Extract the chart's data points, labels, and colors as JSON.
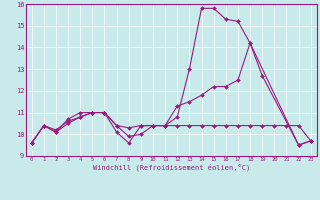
{
  "xlabel": "Windchill (Refroidissement éolien,°C)",
  "background_color": "#c8eaea",
  "line_color": "#9b1a7e",
  "xlim": [
    -0.5,
    23.5
  ],
  "ylim": [
    9,
    16
  ],
  "yticks": [
    9,
    10,
    11,
    12,
    13,
    14,
    15,
    16
  ],
  "xticks": [
    0,
    1,
    2,
    3,
    4,
    5,
    6,
    7,
    8,
    9,
    10,
    11,
    12,
    13,
    14,
    15,
    16,
    17,
    18,
    19,
    20,
    21,
    22,
    23
  ],
  "series": [
    {
      "x": [
        0,
        1,
        2,
        3,
        4,
        5,
        6,
        7,
        8,
        9,
        10,
        11,
        12,
        13,
        14,
        15,
        16,
        17,
        18,
        22,
        23
      ],
      "y": [
        9.6,
        10.4,
        10.1,
        10.7,
        11.0,
        11.0,
        11.0,
        10.1,
        9.6,
        10.4,
        10.4,
        10.4,
        10.8,
        13.0,
        15.8,
        15.8,
        15.3,
        15.2,
        14.2,
        9.5,
        9.7
      ]
    },
    {
      "x": [
        0,
        1,
        2,
        3,
        4,
        5,
        6,
        7,
        8,
        9,
        10,
        11,
        12,
        13,
        14,
        15,
        16,
        17,
        18,
        19,
        22,
        23
      ],
      "y": [
        9.6,
        10.4,
        10.1,
        10.5,
        10.8,
        11.0,
        11.0,
        10.4,
        9.9,
        10.0,
        10.4,
        10.4,
        11.3,
        11.5,
        11.8,
        12.2,
        12.2,
        12.5,
        14.2,
        12.7,
        9.5,
        9.7
      ]
    },
    {
      "x": [
        0,
        1,
        2,
        3,
        4,
        5,
        6,
        7,
        8,
        9,
        10,
        11,
        12,
        13,
        14,
        15,
        16,
        17,
        18,
        19,
        20,
        21,
        22,
        23
      ],
      "y": [
        9.6,
        10.4,
        10.2,
        10.6,
        10.8,
        11.0,
        11.0,
        10.4,
        10.3,
        10.4,
        10.4,
        10.4,
        10.4,
        10.4,
        10.4,
        10.4,
        10.4,
        10.4,
        10.4,
        10.4,
        10.4,
        10.4,
        10.4,
        9.7
      ]
    }
  ]
}
